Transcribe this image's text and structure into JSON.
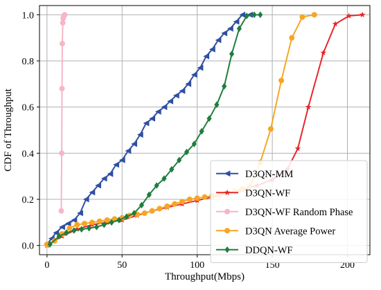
{
  "chart_data": {
    "type": "line",
    "title": "",
    "xlabel": "Throughput(Mbps)",
    "ylabel": "CDF of Throughput",
    "xlim": [
      -5,
      215
    ],
    "ylim": [
      -0.04,
      1.04
    ],
    "xticks": [
      0,
      50,
      100,
      150,
      200
    ],
    "yticks": [
      0.0,
      0.2,
      0.4,
      0.6,
      0.8,
      1.0
    ],
    "xtick_labels": [
      "0",
      "50",
      "100",
      "150",
      "200"
    ],
    "ytick_labels": [
      "0.0",
      "0.2",
      "0.4",
      "0.6",
      "0.8",
      "1.0"
    ],
    "grid": true,
    "legend_position": "lower-right",
    "series": [
      {
        "name": "D3QN-MM",
        "color": "#2f4fa2",
        "marker": "triangle-left",
        "x": [
          0,
          3,
          6,
          10,
          14,
          18,
          22,
          26,
          30,
          34,
          38,
          42,
          46,
          50,
          54,
          58,
          62,
          66,
          70,
          74,
          78,
          82,
          86,
          90,
          94,
          98,
          102,
          106,
          110,
          114,
          118,
          122,
          126,
          130,
          135
        ],
        "y": [
          0.005,
          0.03,
          0.055,
          0.08,
          0.095,
          0.11,
          0.14,
          0.2,
          0.23,
          0.26,
          0.29,
          0.31,
          0.35,
          0.37,
          0.41,
          0.44,
          0.48,
          0.53,
          0.55,
          0.58,
          0.6,
          0.625,
          0.65,
          0.67,
          0.7,
          0.74,
          0.77,
          0.82,
          0.85,
          0.89,
          0.92,
          0.94,
          0.97,
          1.0,
          1.0
        ]
      },
      {
        "name": "D3QN-WF",
        "color": "#e8262a",
        "marker": "star",
        "x": [
          0,
          10,
          20,
          30,
          40,
          50,
          60,
          70,
          80,
          90,
          100,
          110,
          120,
          130,
          140,
          150,
          160,
          167,
          174,
          184,
          192,
          201,
          210
        ],
        "y": [
          0.0,
          0.04,
          0.07,
          0.09,
          0.1,
          0.11,
          0.13,
          0.15,
          0.165,
          0.18,
          0.195,
          0.21,
          0.225,
          0.24,
          0.26,
          0.285,
          0.33,
          0.42,
          0.6,
          0.835,
          0.96,
          0.995,
          1.0
        ]
      },
      {
        "name": "D3QN-WF Random Phase",
        "color": "#f6b6c6",
        "marker": "circle",
        "x": [
          9.5,
          9.8,
          10.0,
          10.2,
          10.5,
          10.8,
          11.2,
          11.8
        ],
        "y": [
          0.15,
          0.4,
          0.68,
          0.875,
          0.965,
          0.985,
          0.995,
          1.0
        ]
      },
      {
        "name": "D3QN Average Power",
        "color": "#f6a623",
        "marker": "circle",
        "x": [
          0,
          5,
          10,
          15,
          20,
          25,
          30,
          35,
          40,
          45,
          50,
          55,
          60,
          65,
          70,
          75,
          80,
          85,
          90,
          95,
          100,
          105,
          110,
          115,
          120,
          125,
          130,
          135,
          142,
          149,
          156,
          163,
          170,
          178
        ],
        "y": [
          0.005,
          0.02,
          0.05,
          0.075,
          0.09,
          0.095,
          0.1,
          0.105,
          0.11,
          0.115,
          0.12,
          0.13,
          0.135,
          0.14,
          0.15,
          0.16,
          0.17,
          0.18,
          0.19,
          0.2,
          0.205,
          0.21,
          0.215,
          0.22,
          0.225,
          0.235,
          0.245,
          0.255,
          0.36,
          0.505,
          0.715,
          0.9,
          0.99,
          1.0
        ]
      },
      {
        "name": "DDQN-WF",
        "color": "#1f7d3e",
        "marker": "diamond",
        "x": [
          2,
          8,
          13,
          18,
          23,
          28,
          33,
          38,
          43,
          48,
          53,
          58,
          63,
          68,
          73,
          78,
          83,
          88,
          93,
          98,
          103,
          108,
          113,
          118,
          123,
          128,
          133,
          138,
          142
        ],
        "y": [
          0.005,
          0.04,
          0.055,
          0.065,
          0.07,
          0.075,
          0.08,
          0.09,
          0.1,
          0.11,
          0.125,
          0.14,
          0.175,
          0.22,
          0.26,
          0.29,
          0.33,
          0.37,
          0.405,
          0.44,
          0.495,
          0.55,
          0.61,
          0.69,
          0.83,
          0.94,
          0.995,
          1.0,
          1.0
        ]
      }
    ]
  }
}
